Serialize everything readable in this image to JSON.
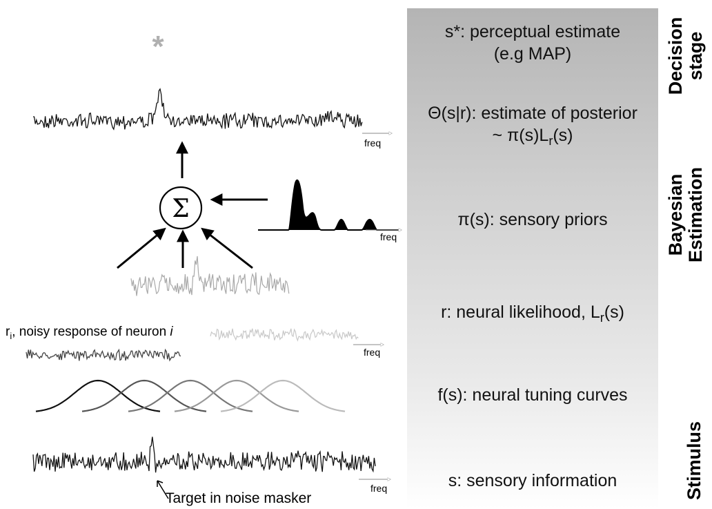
{
  "stages": {
    "decision": {
      "line1": "s*: perceptual estimate",
      "line2": "(e.g MAP)"
    },
    "posterior": {
      "line1": "Θ(s|r): estimate of posterior",
      "line2_pre": "~ π(s)L",
      "line2_sub": "r",
      "line2_post": "(s)"
    },
    "priors": {
      "text": "π(s): sensory priors"
    },
    "likelihood": {
      "pre": "r: neural likelihood, L",
      "sub": "r",
      "post": "(s)"
    },
    "tuning": {
      "text": "f(s): neural tuning curves"
    },
    "sensory": {
      "text": "s: sensory information"
    }
  },
  "side_labels": {
    "decision_stage": [
      "Decision",
      "stage"
    ],
    "bayesian_estimation": [
      "Bayesian",
      "Estimation"
    ],
    "stimulus": [
      "Stimulus"
    ]
  },
  "diagram": {
    "sum_symbol": "Σ",
    "star_symbol": "*",
    "freq_label": "freq",
    "neuron_label": {
      "pre": "r",
      "sub": "i",
      "mid": ", noisy response of neuron ",
      "italic": "i"
    },
    "target_label": "Target in noise masker"
  },
  "colors": {
    "panel_top": "#b4b4b4",
    "trace_dark": "#111111",
    "trace_mid": "#444444",
    "trace_light": "#a8a8a8",
    "trace_lighter": "#c8c8c8",
    "star": "#b0b0b0"
  }
}
